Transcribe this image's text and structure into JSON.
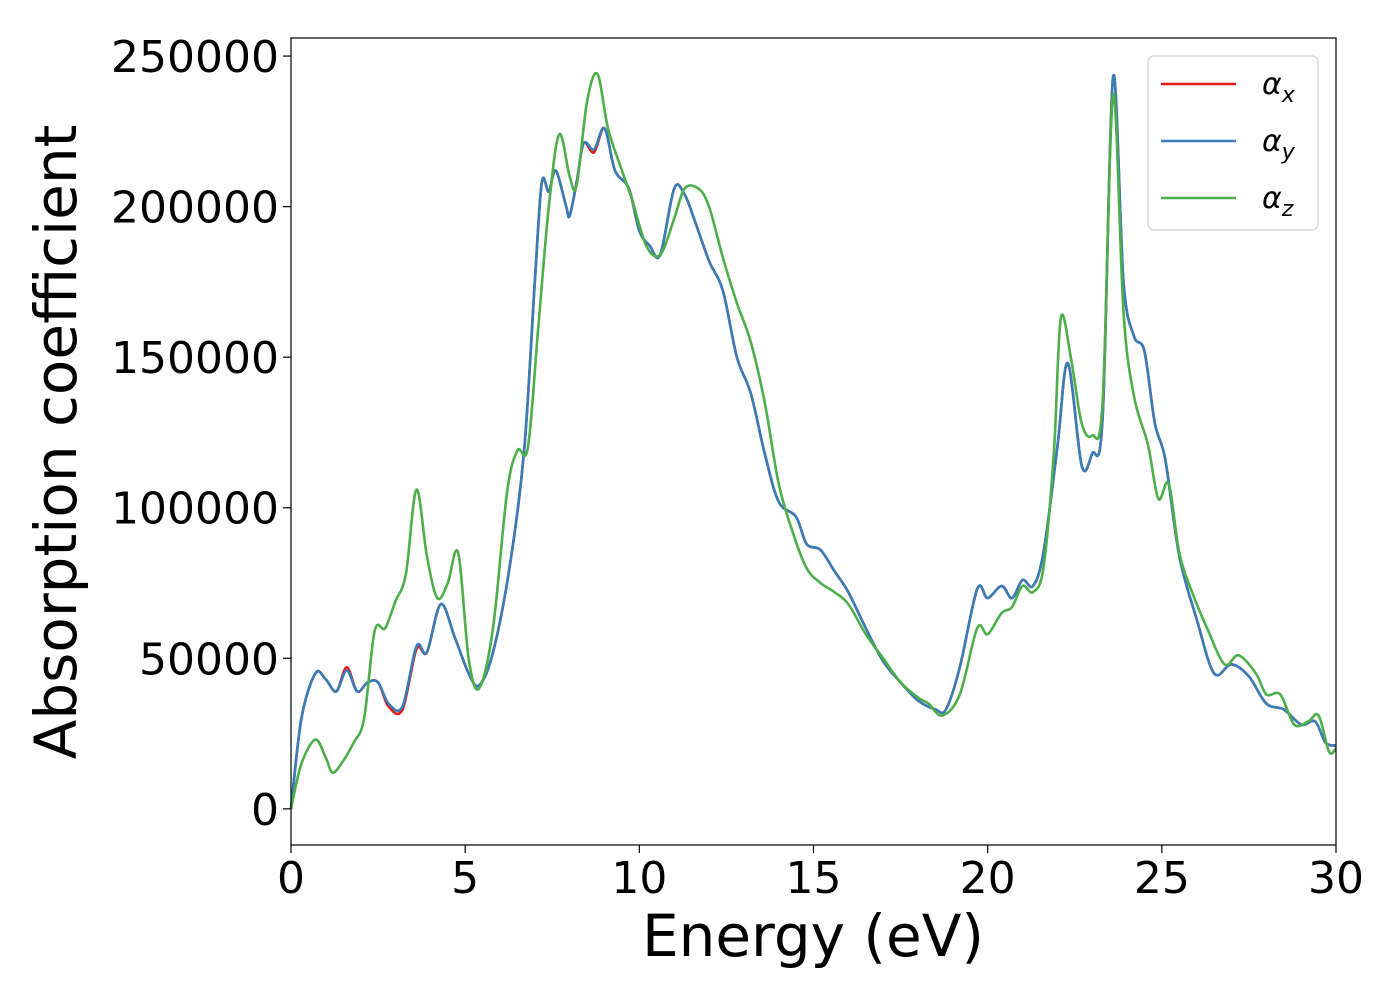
{
  "chart_data": {
    "type": "line",
    "xlabel": "Energy (eV)",
    "ylabel": "Absorption coefficient",
    "xlim": [
      0,
      30
    ],
    "ylim": [
      -12000,
      256000
    ],
    "xticks": [
      "0",
      "5",
      "10",
      "15",
      "20",
      "25",
      "30"
    ],
    "yticks": [
      "0",
      "50000",
      "100000",
      "150000",
      "200000",
      "250000"
    ],
    "grid": false,
    "legend_position": "top-right",
    "series": [
      {
        "name": "αx",
        "symbol": "α",
        "subscript": "x",
        "color": "#e41a1c",
        "points": [
          [
            0,
            0
          ],
          [
            0.3,
            30000
          ],
          [
            0.7,
            45000
          ],
          [
            1.0,
            43000
          ],
          [
            1.3,
            39000
          ],
          [
            1.6,
            47000
          ],
          [
            1.9,
            39000
          ],
          [
            2.2,
            42000
          ],
          [
            2.5,
            42000
          ],
          [
            2.8,
            34000
          ],
          [
            3.2,
            33000
          ],
          [
            3.6,
            53000
          ],
          [
            3.9,
            52000
          ],
          [
            4.3,
            68000
          ],
          [
            4.7,
            57000
          ],
          [
            5.1,
            45000
          ],
          [
            5.4,
            41000
          ],
          [
            5.8,
            52000
          ],
          [
            6.3,
            82000
          ],
          [
            6.7,
            120000
          ],
          [
            7.0,
            175000
          ],
          [
            7.2,
            208000
          ],
          [
            7.4,
            205000
          ],
          [
            7.6,
            212000
          ],
          [
            7.9,
            200000
          ],
          [
            8.0,
            197000
          ],
          [
            8.2,
            208000
          ],
          [
            8.4,
            221000
          ],
          [
            8.7,
            218000
          ],
          [
            9.0,
            226000
          ],
          [
            9.3,
            212000
          ],
          [
            9.7,
            206000
          ],
          [
            10.0,
            192000
          ],
          [
            10.3,
            187000
          ],
          [
            10.6,
            184000
          ],
          [
            11.0,
            206000
          ],
          [
            11.3,
            204000
          ],
          [
            11.6,
            195000
          ],
          [
            12.0,
            182000
          ],
          [
            12.4,
            172000
          ],
          [
            12.8,
            150000
          ],
          [
            13.2,
            138000
          ],
          [
            13.6,
            118000
          ],
          [
            14.0,
            102000
          ],
          [
            14.5,
            97000
          ],
          [
            14.8,
            88000
          ],
          [
            15.2,
            86000
          ],
          [
            15.6,
            79000
          ],
          [
            16.0,
            72000
          ],
          [
            16.5,
            60000
          ],
          [
            17.0,
            49000
          ],
          [
            17.5,
            42000
          ],
          [
            18.0,
            36000
          ],
          [
            18.5,
            33000
          ],
          [
            18.8,
            33000
          ],
          [
            19.2,
            47000
          ],
          [
            19.7,
            73000
          ],
          [
            20.0,
            70000
          ],
          [
            20.4,
            74000
          ],
          [
            20.7,
            70000
          ],
          [
            21.0,
            76000
          ],
          [
            21.3,
            74000
          ],
          [
            21.6,
            85000
          ],
          [
            22.0,
            120000
          ],
          [
            22.3,
            148000
          ],
          [
            22.7,
            114000
          ],
          [
            23.0,
            118000
          ],
          [
            23.3,
            130000
          ],
          [
            23.6,
            243000
          ],
          [
            23.9,
            175000
          ],
          [
            24.2,
            157000
          ],
          [
            24.5,
            152000
          ],
          [
            24.8,
            128000
          ],
          [
            25.1,
            116000
          ],
          [
            25.5,
            84000
          ],
          [
            26.0,
            63000
          ],
          [
            26.5,
            45000
          ],
          [
            27.0,
            48000
          ],
          [
            27.5,
            44000
          ],
          [
            28.0,
            35000
          ],
          [
            28.5,
            33000
          ],
          [
            29.0,
            28000
          ],
          [
            29.4,
            29000
          ],
          [
            29.7,
            22000
          ],
          [
            30.0,
            21000
          ]
        ]
      },
      {
        "name": "αy",
        "symbol": "α",
        "subscript": "y",
        "color": "#377eb8",
        "points": [
          [
            0,
            0
          ],
          [
            0.3,
            30000
          ],
          [
            0.7,
            45000
          ],
          [
            1.0,
            43000
          ],
          [
            1.3,
            39000
          ],
          [
            1.6,
            46000
          ],
          [
            1.9,
            39000
          ],
          [
            2.2,
            42000
          ],
          [
            2.5,
            42000
          ],
          [
            2.8,
            35000
          ],
          [
            3.2,
            34000
          ],
          [
            3.6,
            54000
          ],
          [
            3.9,
            52000
          ],
          [
            4.3,
            68000
          ],
          [
            4.7,
            57000
          ],
          [
            5.1,
            45000
          ],
          [
            5.4,
            41000
          ],
          [
            5.8,
            52000
          ],
          [
            6.3,
            82000
          ],
          [
            6.7,
            120000
          ],
          [
            7.0,
            175000
          ],
          [
            7.2,
            208000
          ],
          [
            7.4,
            205000
          ],
          [
            7.6,
            212000
          ],
          [
            7.9,
            200000
          ],
          [
            8.0,
            197000
          ],
          [
            8.2,
            208000
          ],
          [
            8.4,
            221000
          ],
          [
            8.7,
            219000
          ],
          [
            9.0,
            226000
          ],
          [
            9.3,
            212000
          ],
          [
            9.7,
            206000
          ],
          [
            10.0,
            192000
          ],
          [
            10.3,
            187000
          ],
          [
            10.6,
            184000
          ],
          [
            11.0,
            206000
          ],
          [
            11.3,
            204000
          ],
          [
            11.6,
            195000
          ],
          [
            12.0,
            182000
          ],
          [
            12.4,
            172000
          ],
          [
            12.8,
            150000
          ],
          [
            13.2,
            138000
          ],
          [
            13.6,
            118000
          ],
          [
            14.0,
            102000
          ],
          [
            14.5,
            97000
          ],
          [
            14.8,
            88000
          ],
          [
            15.2,
            86000
          ],
          [
            15.6,
            79000
          ],
          [
            16.0,
            72000
          ],
          [
            16.5,
            60000
          ],
          [
            17.0,
            49000
          ],
          [
            17.5,
            42000
          ],
          [
            18.0,
            36000
          ],
          [
            18.5,
            33000
          ],
          [
            18.8,
            33000
          ],
          [
            19.2,
            47000
          ],
          [
            19.7,
            73000
          ],
          [
            20.0,
            70000
          ],
          [
            20.4,
            74000
          ],
          [
            20.7,
            70000
          ],
          [
            21.0,
            76000
          ],
          [
            21.3,
            74000
          ],
          [
            21.6,
            85000
          ],
          [
            22.0,
            120000
          ],
          [
            22.3,
            148000
          ],
          [
            22.7,
            114000
          ],
          [
            23.0,
            118000
          ],
          [
            23.3,
            130000
          ],
          [
            23.6,
            243000
          ],
          [
            23.9,
            175000
          ],
          [
            24.2,
            157000
          ],
          [
            24.5,
            152000
          ],
          [
            24.8,
            128000
          ],
          [
            25.1,
            116000
          ],
          [
            25.5,
            84000
          ],
          [
            26.0,
            63000
          ],
          [
            26.5,
            45000
          ],
          [
            27.0,
            48000
          ],
          [
            27.5,
            44000
          ],
          [
            28.0,
            35000
          ],
          [
            28.5,
            33000
          ],
          [
            29.0,
            28000
          ],
          [
            29.4,
            29000
          ],
          [
            29.7,
            22000
          ],
          [
            30.0,
            21000
          ]
        ]
      },
      {
        "name": "αz",
        "symbol": "α",
        "subscript": "z",
        "color": "#4daf4a",
        "points": [
          [
            0,
            0
          ],
          [
            0.3,
            15000
          ],
          [
            0.7,
            23000
          ],
          [
            1.0,
            17000
          ],
          [
            1.2,
            12000
          ],
          [
            1.5,
            16000
          ],
          [
            1.8,
            22000
          ],
          [
            2.1,
            30000
          ],
          [
            2.4,
            59000
          ],
          [
            2.7,
            60000
          ],
          [
            3.0,
            69000
          ],
          [
            3.3,
            78000
          ],
          [
            3.6,
            106000
          ],
          [
            3.9,
            84000
          ],
          [
            4.2,
            70000
          ],
          [
            4.5,
            75000
          ],
          [
            4.8,
            85000
          ],
          [
            5.1,
            50000
          ],
          [
            5.4,
            40000
          ],
          [
            5.8,
            60000
          ],
          [
            6.2,
            105000
          ],
          [
            6.5,
            119000
          ],
          [
            6.8,
            120000
          ],
          [
            7.1,
            160000
          ],
          [
            7.4,
            200000
          ],
          [
            7.7,
            224000
          ],
          [
            8.0,
            210000
          ],
          [
            8.2,
            207000
          ],
          [
            8.5,
            235000
          ],
          [
            8.8,
            244000
          ],
          [
            9.1,
            226000
          ],
          [
            9.5,
            212000
          ],
          [
            9.8,
            202000
          ],
          [
            10.2,
            187000
          ],
          [
            10.6,
            184000
          ],
          [
            11.0,
            196000
          ],
          [
            11.3,
            206000
          ],
          [
            11.7,
            206000
          ],
          [
            12.0,
            200000
          ],
          [
            12.4,
            183000
          ],
          [
            12.8,
            168000
          ],
          [
            13.2,
            155000
          ],
          [
            13.6,
            135000
          ],
          [
            14.0,
            108000
          ],
          [
            14.4,
            92000
          ],
          [
            14.8,
            80000
          ],
          [
            15.2,
            75000
          ],
          [
            15.6,
            72000
          ],
          [
            16.0,
            68000
          ],
          [
            16.5,
            58000
          ],
          [
            17.0,
            50000
          ],
          [
            17.5,
            42000
          ],
          [
            18.0,
            37000
          ],
          [
            18.3,
            35000
          ],
          [
            18.7,
            31000
          ],
          [
            19.2,
            38000
          ],
          [
            19.7,
            60000
          ],
          [
            20.0,
            58000
          ],
          [
            20.4,
            65000
          ],
          [
            20.7,
            67000
          ],
          [
            21.0,
            74000
          ],
          [
            21.3,
            72000
          ],
          [
            21.6,
            80000
          ],
          [
            21.9,
            118000
          ],
          [
            22.1,
            163000
          ],
          [
            22.4,
            149000
          ],
          [
            22.7,
            128000
          ],
          [
            23.0,
            124000
          ],
          [
            23.3,
            135000
          ],
          [
            23.6,
            237000
          ],
          [
            23.9,
            165000
          ],
          [
            24.2,
            137000
          ],
          [
            24.6,
            121000
          ],
          [
            24.9,
            103000
          ],
          [
            25.2,
            108000
          ],
          [
            25.5,
            85000
          ],
          [
            25.9,
            71000
          ],
          [
            26.3,
            60000
          ],
          [
            26.8,
            48000
          ],
          [
            27.2,
            51000
          ],
          [
            27.7,
            45000
          ],
          [
            28.0,
            38000
          ],
          [
            28.4,
            38000
          ],
          [
            28.8,
            28000
          ],
          [
            29.2,
            29000
          ],
          [
            29.5,
            31000
          ],
          [
            29.8,
            19000
          ],
          [
            30.0,
            20000
          ]
        ]
      }
    ]
  }
}
